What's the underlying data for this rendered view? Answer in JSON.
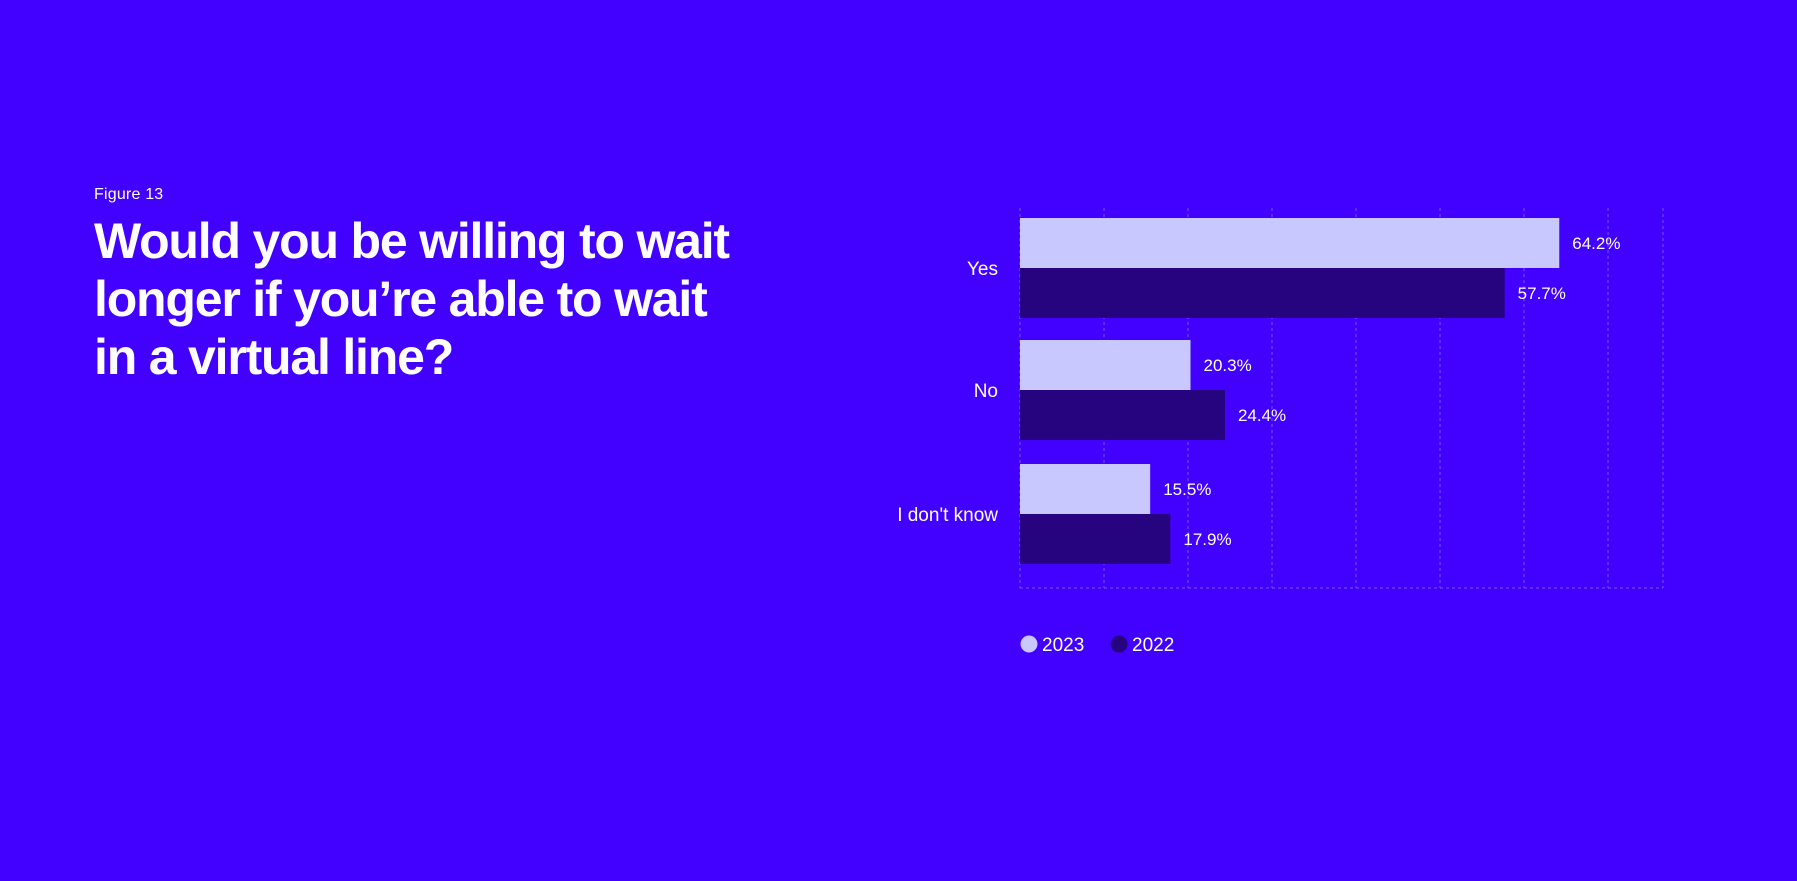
{
  "figure_label": "Figure 13",
  "headline": "Would you be willing to wait longer if you’re able to wait in a virtual line?",
  "colors": {
    "background": "#4200ff",
    "series_2023": "#c8c8ff",
    "series_2022": "#260480",
    "grid": "#7a55ff"
  },
  "chart_data": {
    "type": "bar",
    "orientation": "horizontal",
    "categories": [
      "Yes",
      "No",
      "I don't know"
    ],
    "series": [
      {
        "name": "2023",
        "values": [
          64.2,
          20.3,
          15.5
        ],
        "labels": [
          "64.2%",
          "20.3%",
          "15.5%"
        ],
        "color": "#c8c8ff"
      },
      {
        "name": "2022",
        "values": [
          57.7,
          24.4,
          17.9
        ],
        "labels": [
          "57.7%",
          "24.4%",
          "17.9%"
        ],
        "color": "#260480"
      }
    ],
    "xlim": [
      0,
      70
    ],
    "grid": true,
    "legend_position": "bottom-left"
  }
}
